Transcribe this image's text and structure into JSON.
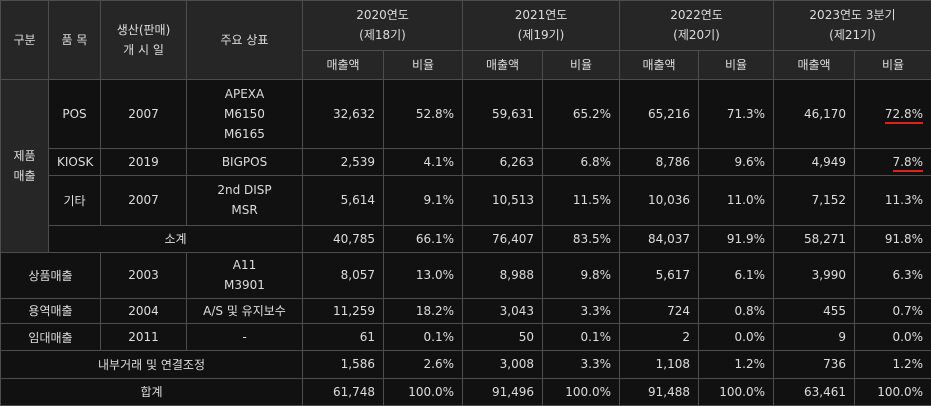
{
  "header": {
    "col_category": "구분",
    "col_item": "품 목",
    "col_start_line1": "생산(판매)",
    "col_start_line2": "개 시 일",
    "col_products": "주요 상표",
    "years": [
      {
        "line1": "2020연도",
        "line2": "(제18기)"
      },
      {
        "line1": "2021연도",
        "line2": "(제19기)"
      },
      {
        "line1": "2022연도",
        "line2": "(제20기)"
      },
      {
        "line1": "2023연도 3분기",
        "line2": "(제21기)"
      }
    ],
    "sales_label": "매출액",
    "ratio_label": "비율"
  },
  "product_group": {
    "line1": "제품",
    "line2": "매출"
  },
  "rows": {
    "pos": {
      "item": "POS",
      "start": "2007",
      "brands": [
        "APEXA",
        "M6150",
        "M6165"
      ],
      "values": [
        "32,632",
        "52.8%",
        "59,631",
        "65.2%",
        "65,216",
        "71.3%",
        "46,170",
        "72.8%"
      ]
    },
    "kiosk": {
      "item": "KIOSK",
      "start": "2019",
      "brands": [
        "BIGPOS"
      ],
      "values": [
        "2,539",
        "4.1%",
        "6,263",
        "6.8%",
        "8,786",
        "9.6%",
        "4,949",
        "7.8%"
      ]
    },
    "etc": {
      "item": "기타",
      "start": "2007",
      "brands": [
        "2nd DISP",
        "MSR"
      ],
      "values": [
        "5,614",
        "9.1%",
        "10,513",
        "11.5%",
        "10,036",
        "11.0%",
        "7,152",
        "11.3%"
      ]
    },
    "subtotal": {
      "label": "소계",
      "values": [
        "40,785",
        "66.1%",
        "76,407",
        "83.5%",
        "84,037",
        "91.9%",
        "58,271",
        "91.8%"
      ]
    },
    "merch": {
      "label": "상품매출",
      "start": "2003",
      "brands": [
        "A11",
        "M3901"
      ],
      "values": [
        "8,057",
        "13.0%",
        "8,988",
        "9.8%",
        "5,617",
        "6.1%",
        "3,990",
        "6.3%"
      ]
    },
    "service": {
      "label": "용역매출",
      "start": "2004",
      "brands": [
        "A/S 및 유지보수"
      ],
      "values": [
        "11,259",
        "18.2%",
        "3,043",
        "3.3%",
        "724",
        "0.8%",
        "455",
        "0.7%"
      ]
    },
    "rent": {
      "label": "임대매출",
      "start": "2011",
      "brands": [
        "-"
      ],
      "values": [
        "61",
        "0.1%",
        "50",
        "0.1%",
        "2",
        "0.0%",
        "9",
        "0.0%"
      ]
    },
    "internal": {
      "label": "내부거래 및 연결조정",
      "values": [
        "1,586",
        "2.6%",
        "3,008",
        "3.3%",
        "1,108",
        "1.2%",
        "736",
        "1.2%"
      ]
    },
    "total": {
      "label": "합계",
      "values": [
        "61,748",
        "100.0%",
        "91,496",
        "100.0%",
        "91,488",
        "100.0%",
        "63,461",
        "100.0%"
      ]
    }
  },
  "colors": {
    "background": "#111111",
    "header": "#262626",
    "border": "#4d4d4d",
    "text": "#dddddd",
    "highlight": "#e02020"
  }
}
